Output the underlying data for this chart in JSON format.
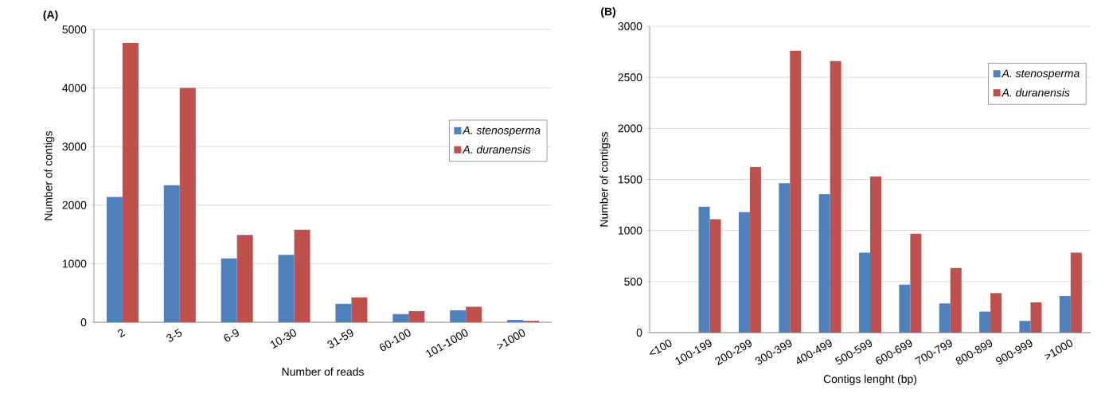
{
  "chart_data": [
    {
      "type": "bar",
      "title": "(A)",
      "xlabel": "Number of  reads",
      "ylabel": "Number of contigs",
      "categories": [
        "2",
        "3-5",
        "6-9",
        "10-30",
        "31-59",
        "60-100",
        "101-1000",
        ">1000"
      ],
      "series": [
        {
          "name": "A. stenosperma",
          "color": "#4f81bd",
          "values": [
            2140,
            2340,
            1090,
            1150,
            315,
            140,
            205,
            40
          ]
        },
        {
          "name": "A. duranensis",
          "color": "#c0504d",
          "values": [
            4770,
            4000,
            1490,
            1580,
            425,
            190,
            265,
            25
          ]
        }
      ],
      "ylim": [
        0,
        5000
      ],
      "yticks": [
        0,
        1000,
        2000,
        3000,
        4000,
        5000
      ],
      "grid": "y",
      "legend": "right"
    },
    {
      "type": "bar",
      "title": "(B)",
      "xlabel": "Contigs lenght (bp)",
      "ylabel": "Number of contigss",
      "categories": [
        "<100",
        "100-199",
        "200-299",
        "300-399",
        "400-499",
        "500-599",
        "600-699",
        "700-799",
        "800-899",
        "900-999",
        ">1000"
      ],
      "series": [
        {
          "name": "A. stenosperma",
          "color": "#4f81bd",
          "values": [
            0,
            1233,
            1181,
            1463,
            1355,
            784,
            470,
            286,
            206,
            115,
            359
          ]
        },
        {
          "name": "A. duranensis",
          "color": "#c0504d",
          "values": [
            0,
            1111,
            1620,
            2760,
            2659,
            1530,
            969,
            634,
            387,
            296,
            784
          ]
        }
      ],
      "ylim": [
        0,
        3000
      ],
      "yticks": [
        0,
        500,
        1000,
        1500,
        2000,
        2500,
        3000
      ],
      "grid": "y",
      "legend": "top right"
    }
  ]
}
